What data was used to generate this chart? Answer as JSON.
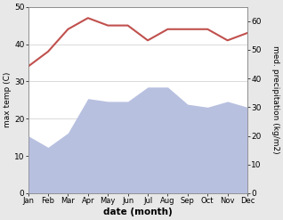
{
  "months": [
    "Jan",
    "Feb",
    "Mar",
    "Apr",
    "May",
    "Jun",
    "Jul",
    "Aug",
    "Sep",
    "Oct",
    "Nov",
    "Dec"
  ],
  "x": [
    0,
    1,
    2,
    3,
    4,
    5,
    6,
    7,
    8,
    9,
    10,
    11
  ],
  "precipitation": [
    20,
    16,
    21,
    33,
    32,
    32,
    37,
    37,
    31,
    30,
    32,
    30
  ],
  "temperature": [
    34,
    38,
    44,
    47,
    45,
    45,
    41,
    44,
    44,
    44,
    41,
    43
  ],
  "temp_color": "#c0504d",
  "precip_fill_color": "#b8c0e0",
  "temp_ylim": [
    0,
    50
  ],
  "precip_ylim": [
    0,
    65
  ],
  "precip_right_ticks": [
    0,
    10,
    20,
    30,
    40,
    50,
    60
  ],
  "temp_left_ticks": [
    0,
    10,
    20,
    30,
    40,
    50
  ],
  "xlabel": "date (month)",
  "ylabel_left": "max temp (C)",
  "ylabel_right": "med. precipitation (kg/m2)",
  "fig_facecolor": "#e8e8e8",
  "ax_facecolor": "#ffffff"
}
